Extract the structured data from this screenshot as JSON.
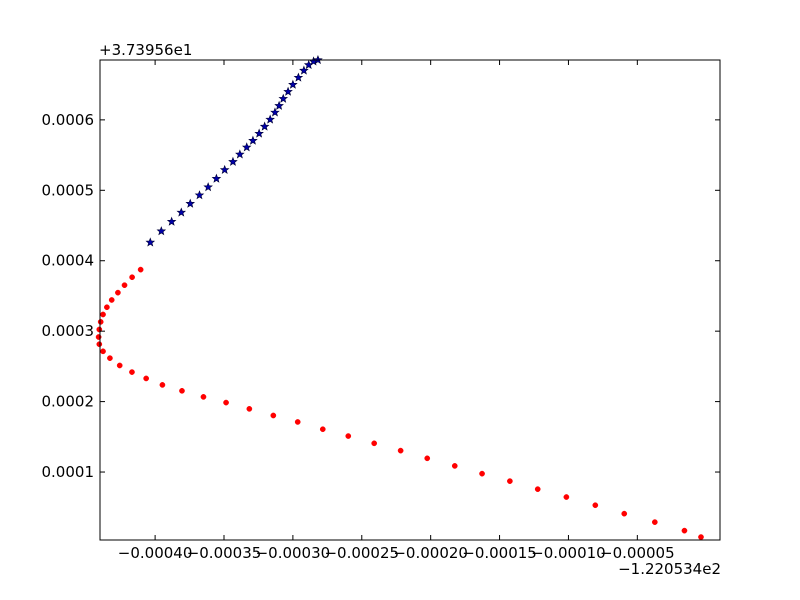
{
  "chart_data": {
    "type": "scatter",
    "title": "",
    "xlabel": "",
    "ylabel": "",
    "x_offset_label": "−1.220534e2",
    "y_offset_label": "+3.73956e1",
    "x_offset": -122.0534,
    "y_offset": 37.3956,
    "xlim": [
      -0.00044,
      1e-05
    ],
    "ylim": [
      3.5e-06,
      0.000685
    ],
    "x_ticks": [
      -0.0004,
      -0.00035,
      -0.0003,
      -0.00025,
      -0.0002,
      -0.00015,
      -0.0001,
      -5e-05
    ],
    "x_tick_labels": [
      "−0.00040",
      "−0.00035",
      "−0.00030",
      "−0.00025",
      "−0.00020",
      "−0.00015",
      "−0.00010",
      "−0.00005"
    ],
    "y_ticks": [
      0.0001,
      0.0002,
      0.0003,
      0.0004,
      0.0005,
      0.0006
    ],
    "y_tick_labels": [
      "0.0001",
      "0.0002",
      "0.0003",
      "0.0004",
      "0.0005",
      "0.0006"
    ],
    "grid": false,
    "colors": {
      "series_red": "#ff0000",
      "series_blue": "#0000aa",
      "axes": "#000000"
    },
    "series": [
      {
        "marker": "dot",
        "color": "#ff0000",
        "x": [
          -3.8e-06,
          -1.58e-05,
          -3.73e-05,
          -5.95e-05,
          -8.05e-05,
          -0.0001015,
          -0.0001223,
          -0.0001425,
          -0.0001627,
          -0.0001825,
          -0.0002025,
          -0.0002218,
          -0.000241,
          -0.0002598,
          -0.0002783,
          -0.0002965,
          -0.0003142,
          -0.0003316,
          -0.0003485,
          -0.0003649,
          -0.0003805,
          -0.0003947,
          -0.0004065,
          -0.0004168,
          -0.0004257,
          -0.0004328,
          -0.0004378,
          -0.0004405,
          -0.000441,
          -0.0004405,
          -0.0004395,
          -0.0004378,
          -0.000435,
          -0.0004315,
          -0.000427,
          -0.0004222,
          -0.0004167,
          -0.0004105
        ],
        "y": [
          7.7e-06,
          1.68e-05,
          2.89e-05,
          4.09e-05,
          5.29e-05,
          6.45e-05,
          7.57e-05,
          8.71e-05,
          9.77e-05,
          0.0001087,
          0.0001195,
          0.0001304,
          0.0001408,
          0.0001511,
          0.0001608,
          0.0001711,
          0.0001803,
          0.0001897,
          0.0001986,
          0.0002067,
          0.0002153,
          0.0002237,
          0.0002329,
          0.0002419,
          0.0002513,
          0.0002617,
          0.0002714,
          0.0002815,
          0.0002917,
          0.0003024,
          0.0003132,
          0.0003237,
          0.000334,
          0.0003443,
          0.0003547,
          0.0003653,
          0.0003766,
          0.0003874
        ]
      },
      {
        "marker": "star",
        "color": "#0000aa",
        "x": [
          -0.0004035,
          -0.0003955,
          -0.000388,
          -0.000381,
          -0.0003745,
          -0.0003678,
          -0.0003615,
          -0.0003555,
          -0.0003495,
          -0.0003435,
          -0.0003385,
          -0.0003335,
          -0.000329,
          -0.0003245,
          -0.0003205,
          -0.0003165,
          -0.000313,
          -0.00031,
          -0.000307,
          -0.0003035,
          -0.0003,
          -0.000296,
          -0.000292,
          -0.0002885,
          -0.000285,
          -0.0002818
        ],
        "y": [
          0.000426,
          0.000442,
          0.0004555,
          0.0004685,
          0.000481,
          0.000493,
          0.0005045,
          0.0005165,
          0.000529,
          0.0005405,
          0.000551,
          0.000561,
          0.0005705,
          0.0005805,
          0.0005905,
          0.0006005,
          0.0006105,
          0.00062,
          0.00063,
          0.00064,
          0.00065,
          0.00066,
          0.00067,
          0.000678,
          0.000683,
          0.000685
        ]
      }
    ]
  }
}
